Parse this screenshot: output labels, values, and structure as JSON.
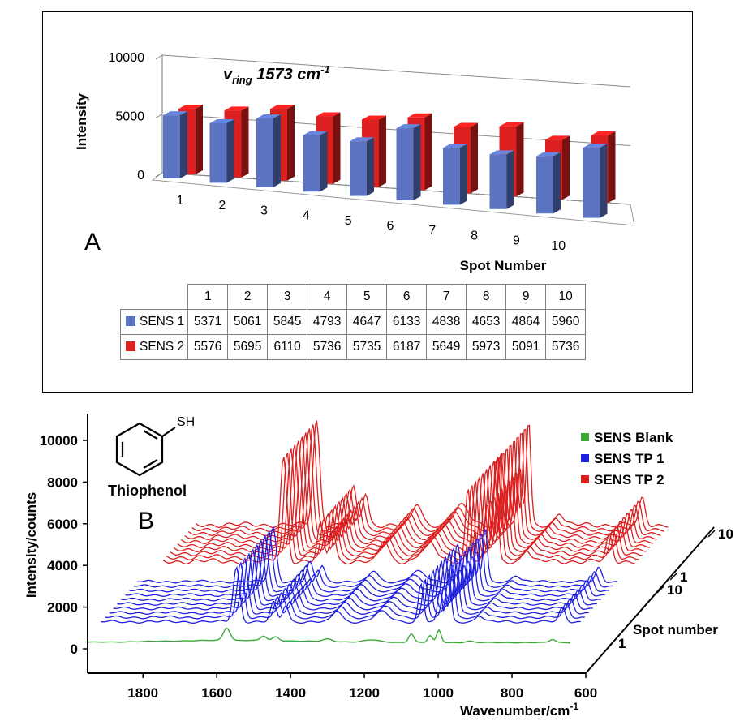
{
  "panelA": {
    "letter": "A",
    "annotation_main": "v",
    "annotation_sub": "ring",
    "annotation_rest": " 1573 cm",
    "annotation_sup": "-1"
  },
  "panelB": {
    "letter": "B",
    "molecule_label": "Thiophenol",
    "molecule_substituent": "SH"
  },
  "chart_data": [
    {
      "type": "bar",
      "xlabel": "Spot Number",
      "ylabel": "Intensity",
      "ylim": [
        0,
        10000
      ],
      "yticks": [
        0,
        5000,
        10000
      ],
      "categories": [
        "1",
        "2",
        "3",
        "4",
        "5",
        "6",
        "7",
        "8",
        "9",
        "10"
      ],
      "series": [
        {
          "name": "SENS 1",
          "color": "#5b73c0",
          "values": [
            5371,
            5061,
            5845,
            4793,
            4647,
            6133,
            4838,
            4653,
            4864,
            5960
          ]
        },
        {
          "name": "SENS 2",
          "color": "#dc1f1f",
          "values": [
            5576,
            5695,
            6110,
            5736,
            5735,
            6187,
            5649,
            5973,
            5091,
            5736
          ]
        }
      ],
      "grid": true,
      "legend": "data-table"
    },
    {
      "type": "line",
      "xlabel": "Wavenumber/cm",
      "xlabel_sup": "-1",
      "ylabel": "Intensity/counts",
      "zlabel": "Spot number",
      "xlim": [
        1950,
        600
      ],
      "xticks": [
        1800,
        1600,
        1400,
        1200,
        1000,
        800,
        600
      ],
      "yticks": [
        0,
        2000,
        4000,
        6000,
        8000,
        10000
      ],
      "depth_ticks": [
        "1",
        "10",
        "1",
        "10"
      ],
      "series": [
        {
          "name": "SENS Blank",
          "color": "#3aaa35",
          "count": 1
        },
        {
          "name": "SENS TP 1",
          "color": "#1f1fe0",
          "count": 10
        },
        {
          "name": "SENS TP 2",
          "color": "#dc1f1f",
          "count": 10
        }
      ],
      "legend": "top-right"
    }
  ]
}
